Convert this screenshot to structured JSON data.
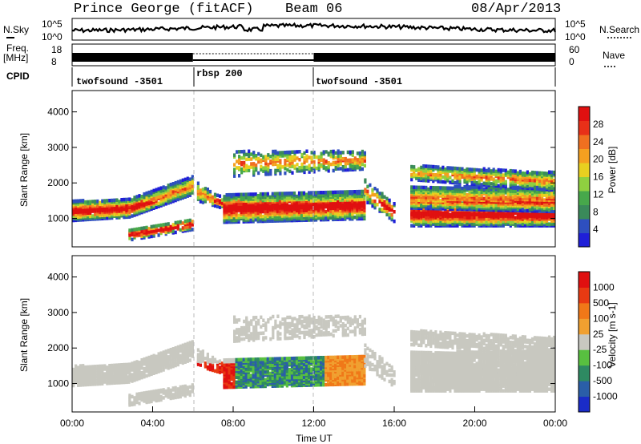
{
  "header": {
    "station": "Prince George (fitACF)",
    "beam": "Beam 06",
    "date": "08/Apr/2013"
  },
  "noise_panel": {
    "left_label": "N.Sky",
    "right_label": "N.Search",
    "left_ticks": [
      "10^5",
      "10^0"
    ],
    "right_ticks": [
      "10^5",
      "10^0"
    ]
  },
  "freq_panel": {
    "left_label_1": "Freq.",
    "left_label_2": "[MHz]",
    "right_label": "Nave",
    "left_ticks": [
      "18",
      "8"
    ],
    "right_ticks": [
      "60",
      "0"
    ]
  },
  "cpid": {
    "label": "CPID",
    "segments": [
      {
        "name": "twofsound -3501",
        "start_h": 0,
        "end_h": 6
      },
      {
        "name": "rbsp 200",
        "start_h": 6,
        "end_h": 12
      },
      {
        "name": "twofsound -3501",
        "start_h": 12,
        "end_h": 24
      }
    ]
  },
  "chart_data": [
    {
      "type": "heatmap",
      "panel": "power",
      "ylabel": "Slant Range [km]",
      "yticks": [
        "1000",
        "2000",
        "3000",
        "4000"
      ],
      "ylim": [
        200,
        4600
      ],
      "xlim_hours": [
        0,
        24
      ],
      "colorbar_label": "Power [dB]",
      "colorbar_ticks": [
        "28",
        "24",
        "20",
        "16",
        "12",
        "8",
        "4"
      ],
      "colors": [
        "#1f1fd8",
        "#2e4fbf",
        "#3a8a5a",
        "#47a84b",
        "#8fd040",
        "#e8d020",
        "#f5a020",
        "#f07020",
        "#e83018",
        "#e01010"
      ]
    },
    {
      "type": "heatmap",
      "panel": "velocity",
      "ylabel": "Slant Range [km]",
      "yticks": [
        "1000",
        "2000",
        "3000",
        "4000"
      ],
      "ylim": [
        200,
        4600
      ],
      "xlim_hours": [
        0,
        24
      ],
      "xlabel": "Time UT",
      "xticks": [
        "00:00",
        "04:00",
        "08:00",
        "12:00",
        "16:00",
        "20:00",
        "00:00"
      ],
      "colorbar_label": "Velocity [m s-1]",
      "colorbar_ticks": [
        "1000",
        "500",
        "100",
        "25",
        "-25",
        "-100",
        "-500",
        "-1000"
      ],
      "colors": [
        "#1a2cc8",
        "#2a5ea8",
        "#2e8a62",
        "#58c040",
        "#c8c8c0",
        "#f0a030",
        "#f07818",
        "#e83a12",
        "#e01010"
      ]
    }
  ]
}
